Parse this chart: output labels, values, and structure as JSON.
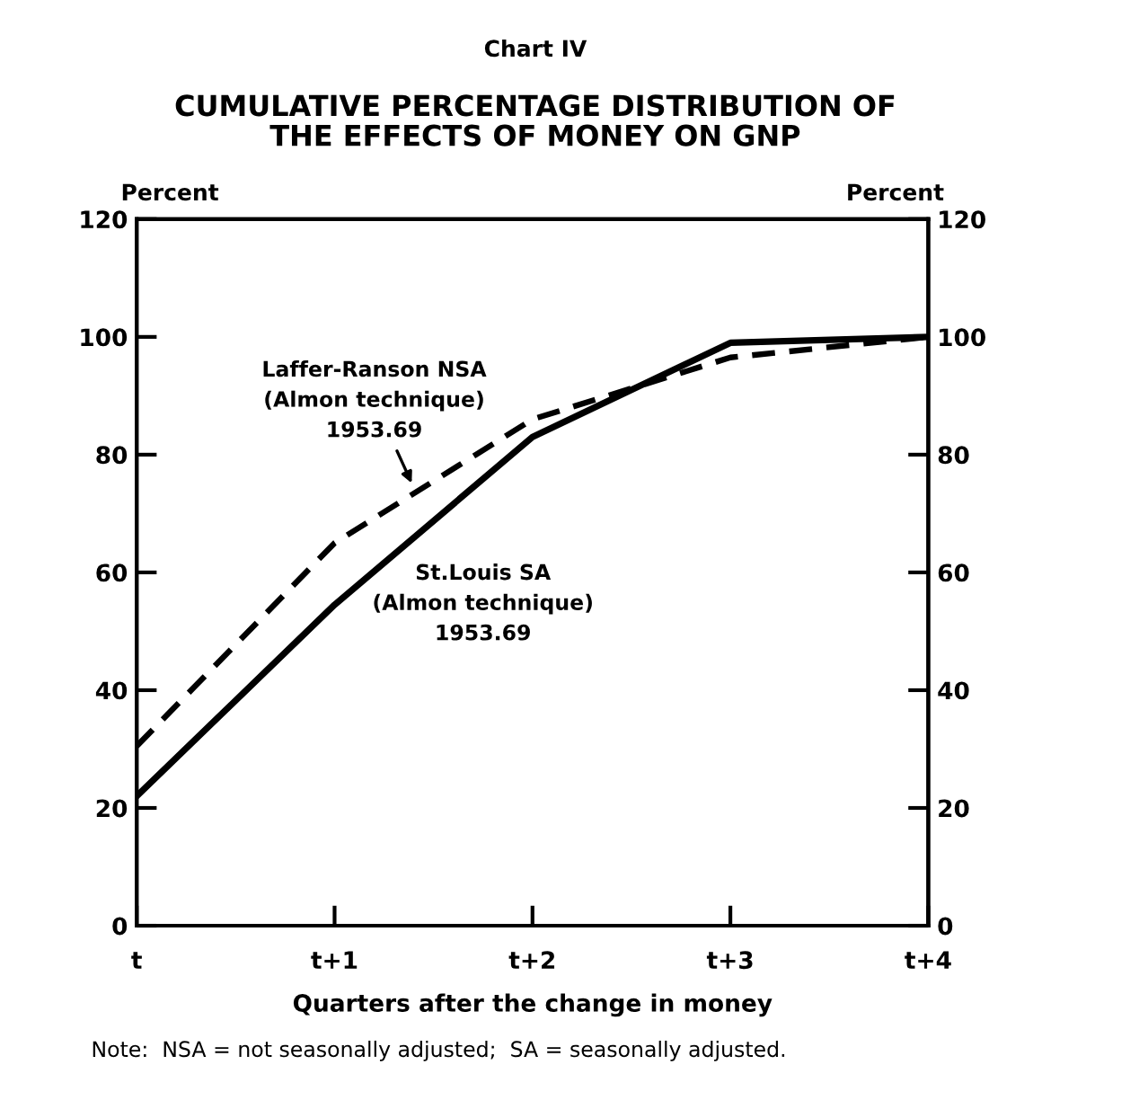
{
  "chart_data": {
    "type": "line",
    "title": "CUMULATIVE PERCENTAGE DISTRIBUTION OF\nTHE EFFECTS OF MONEY ON GNP",
    "annotations": [
      "Chart IV",
      "Note:  NSA = not seasonally adjusted;  SA = seasonally adjusted."
    ],
    "xlabel": "Quarters after the change in money",
    "ylabel": "Percent",
    "y2label": "Percent",
    "categories": [
      "t",
      "t+1",
      "t+2",
      "t+3",
      "t+4"
    ],
    "series": [
      {
        "name": "St.Louis SA\n(Almon technique)\n1953.69",
        "color": "#000000",
        "line_style": "solid",
        "values": [
          22,
          54.5,
          83,
          99,
          100
        ]
      },
      {
        "name": "Laffer-Ranson NSA\n(Almon technique)\n1953.69",
        "color": "#000000",
        "line_style": "dashed",
        "values": [
          30.5,
          65,
          86,
          96.5,
          100
        ]
      }
    ],
    "ylim": [
      0,
      120
    ],
    "yticks": [
      0,
      20,
      40,
      60,
      80,
      100,
      120
    ],
    "y2lim": [
      0,
      120
    ],
    "y2ticks": [
      0,
      20,
      40,
      60,
      80,
      100,
      120
    ],
    "grid": false,
    "legend": false,
    "marker": "none"
  }
}
